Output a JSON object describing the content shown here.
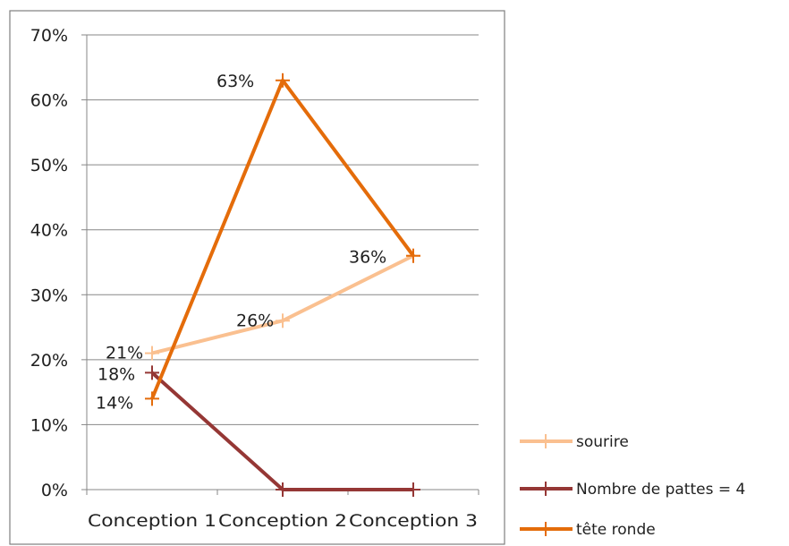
{
  "chart_data": {
    "type": "line",
    "categories": [
      "Conception 1",
      "Conception 2",
      "Conception 3"
    ],
    "y_ticks": [
      "0%",
      "10%",
      "20%",
      "30%",
      "40%",
      "50%",
      "60%",
      "70%"
    ],
    "ylim": [
      0,
      70
    ],
    "grid": true,
    "legend_position": "bottom-right",
    "series": [
      {
        "name": "sourire",
        "values": [
          21,
          26,
          36
        ],
        "color": "#FAC090",
        "labels": [
          "21%",
          "26%",
          ""
        ]
      },
      {
        "name": "Nombre de pattes = 4",
        "values": [
          18,
          0,
          0
        ],
        "color": "#953735",
        "labels": [
          "18%",
          "",
          ""
        ]
      },
      {
        "name": "tête ronde",
        "values": [
          14,
          63,
          36
        ],
        "color": "#E46C0A",
        "labels": [
          "14%",
          "63%",
          "36%"
        ]
      }
    ]
  }
}
